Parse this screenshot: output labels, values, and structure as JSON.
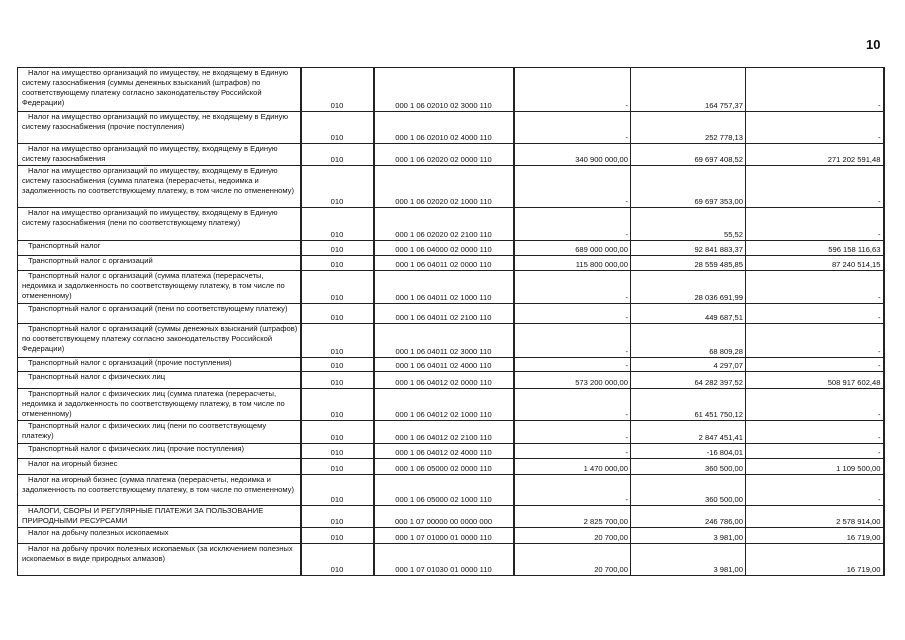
{
  "page_number": "10",
  "rows": [
    {
      "name": "Налог на имущество организаций по имуществу, не входящему в Единую систему газоснабжения (суммы денежных взысканий (штрафов) по соответствующему платежу согласно законодательству Российской Федерации)",
      "line": "010",
      "code": "000 1 06 02010 02 3000 110",
      "approved": "-",
      "executed": "164 757,37",
      "unexecuted": "-"
    },
    {
      "name": "Налог на имущество организаций по имуществу, не входящему в Единую систему газоснабжения (прочие поступления)",
      "line": "010",
      "code": "000 1 06 02010 02 4000 110",
      "approved": "-",
      "executed": "252 778,13",
      "unexecuted": "-"
    },
    {
      "name": "Налог на имущество организаций по имуществу, входящему в Единую систему газоснабжения",
      "line": "010",
      "code": "000 1 06 02020 02 0000 110",
      "approved": "340 900 000,00",
      "executed": "69 697 408,52",
      "unexecuted": "271 202 591,48"
    },
    {
      "name": "Налог на имущество организаций по имуществу, входящему в Единую систему газоснабжения (сумма платежа (перерасчеты, недоимка и задолженность по соответствующему платежу, в том числе по отмененному)",
      "line": "010",
      "code": "000 1 06 02020 02 1000 110",
      "approved": "-",
      "executed": "69 697 353,00",
      "unexecuted": "-"
    },
    {
      "name": "Налог на имущество организаций по имуществу, входящему в Единую систему газоснабжения (пени по соответствующему платежу)",
      "line": "010",
      "code": "000 1 06 02020 02 2100 110",
      "approved": "-",
      "executed": "55,52",
      "unexecuted": "-"
    },
    {
      "name": "Транспортный налог",
      "line": "010",
      "code": "000 1 06 04000 02 0000 110",
      "approved": "689 000 000,00",
      "executed": "92 841 883,37",
      "unexecuted": "596 158 116,63"
    },
    {
      "name": "Транспортный налог с организаций",
      "line": "010",
      "code": "000 1 06 04011 02 0000 110",
      "approved": "115 800 000,00",
      "executed": "28 559 485,85",
      "unexecuted": "87 240 514,15"
    },
    {
      "name": "Транспортный налог с организаций (сумма платежа (перерасчеты, недоимка и задолженность по соответствующему платежу, в том числе по отмененному)",
      "line": "010",
      "code": "000 1 06 04011 02 1000 110",
      "approved": "-",
      "executed": "28 036 691,99",
      "unexecuted": "-"
    },
    {
      "name": "Транспортный налог с организаций (пени по соответствующему платежу)",
      "line": "010",
      "code": "000 1 06 04011 02 2100 110",
      "approved": "-",
      "executed": "449 687,51",
      "unexecuted": "-"
    },
    {
      "name": "Транспортный налог с организаций (суммы денежных взысканий (штрафов) по соответствующему платежу согласно законодательству Российской Федерации)",
      "line": "010",
      "code": "000 1 06 04011 02 3000 110",
      "approved": "-",
      "executed": "68 809,28",
      "unexecuted": "-"
    },
    {
      "name": "Транспортный налог с организаций (прочие поступления)",
      "line": "010",
      "code": "000 1 06 04011 02 4000 110",
      "approved": "-",
      "executed": "4 297,07",
      "unexecuted": "-"
    },
    {
      "name": "Транспортный налог с физических лиц",
      "line": "010",
      "code": "000 1 06 04012 02 0000 110",
      "approved": "573 200 000,00",
      "executed": "64 282 397,52",
      "unexecuted": "508 917 602,48"
    },
    {
      "name": "Транспортный налог с физических лиц (сумма платежа (перерасчеты, недоимка и задолженность по соответствующему платежу, в том числе по отмененному)",
      "line": "010",
      "code": "000 1 06 04012 02 1000 110",
      "approved": "-",
      "executed": "61 451 750,12",
      "unexecuted": "-"
    },
    {
      "name": "Транспортный налог с физических лиц (пени по соответствующему платежу)",
      "line": "010",
      "code": "000 1 06 04012 02 2100 110",
      "approved": "-",
      "executed": "2 847 451,41",
      "unexecuted": "-"
    },
    {
      "name": "Транспортный налог с физических лиц (прочие поступления)",
      "line": "010",
      "code": "000 1 06 04012 02 4000 110",
      "approved": "-",
      "executed": "-16 804,01",
      "unexecuted": "-"
    },
    {
      "name": "Налог на игорный бизнес",
      "line": "010",
      "code": "000 1 06 05000 02 0000 110",
      "approved": "1 470 000,00",
      "executed": "360 500,00",
      "unexecuted": "1 109 500,00"
    },
    {
      "name": "Налог на игорный бизнес (сумма платежа (перерасчеты, недоимка и задолженность по соответствующему платежу, в том числе по отмененному)",
      "line": "010",
      "code": "000 1 06 05000 02 1000 110",
      "approved": "-",
      "executed": "360 500,00",
      "unexecuted": "-"
    },
    {
      "name": "НАЛОГИ, СБОРЫ И РЕГУЛЯРНЫЕ ПЛАТЕЖИ ЗА ПОЛЬЗОВАНИЕ ПРИРОДНЫМИ РЕСУРСАМИ",
      "line": "010",
      "code": "000 1 07 00000 00 0000 000",
      "approved": "2 825 700,00",
      "executed": "246 786,00",
      "unexecuted": "2 578 914,00"
    },
    {
      "name": "Налог на добычу полезных ископаемых",
      "line": "010",
      "code": "000 1 07 01000 01 0000 110",
      "approved": "20 700,00",
      "executed": "3 981,00",
      "unexecuted": "16 719,00"
    },
    {
      "name": "Налог на добычу прочих полезных ископаемых (за исключением полезных ископаемых в виде природных алмазов)",
      "line": "010",
      "code": "000 1 07 01030 01 0000 110",
      "approved": "20 700,00",
      "executed": "3 981,00",
      "unexecuted": "16 719,00"
    }
  ]
}
